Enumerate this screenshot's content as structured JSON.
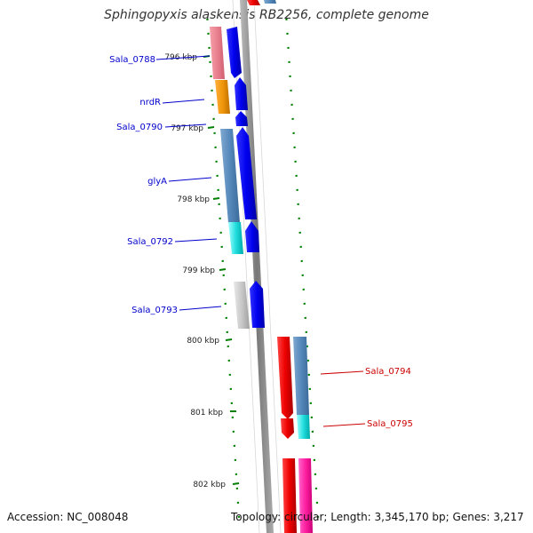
{
  "title": "Sphingopyxis alaskensis RB2256, complete genome",
  "footer": {
    "accession_label": "Accession:",
    "accession": "NC_008048",
    "topology_label": "Topology:",
    "topology": "circular",
    "length_label": "Length:",
    "length": "3,345,170 bp",
    "genes_label": "Genes:",
    "genes": "3,217"
  },
  "ticks": [
    {
      "label": "796 kbp"
    },
    {
      "label": "797 kbp"
    },
    {
      "label": "798 kbp"
    },
    {
      "label": "799 kbp"
    },
    {
      "label": "800 kbp"
    },
    {
      "label": "801 kbp"
    },
    {
      "label": "802 kbp"
    }
  ],
  "genes": [
    {
      "name": "Sala_0788",
      "strand": "forward"
    },
    {
      "name": "nrdR",
      "strand": "forward"
    },
    {
      "name": "Sala_0790",
      "strand": "forward"
    },
    {
      "name": "glyA",
      "strand": "forward"
    },
    {
      "name": "Sala_0792",
      "strand": "forward"
    },
    {
      "name": "Sala_0793",
      "strand": "forward"
    },
    {
      "name": "Sala_0794",
      "strand": "reverse"
    },
    {
      "name": "Sala_0795",
      "strand": "reverse"
    }
  ],
  "colors": {
    "forward_label": "#0000cc",
    "reverse_label": "#cc0000",
    "forward_cds": "#0000ee",
    "reverse_cds": "#ee0000",
    "tick": "#008000",
    "backbone": "#808080"
  },
  "icons": {
    "cds": "arrow-icon",
    "feature": "bar-icon"
  }
}
